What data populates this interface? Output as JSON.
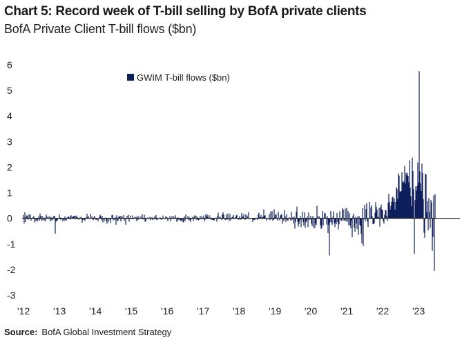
{
  "header": {
    "title": "Chart 5: Record week of T-bill selling by BofA private clients",
    "subtitle": "BofA Private Client T-bill flows ($bn)"
  },
  "footer": {
    "source_label": "Source:",
    "source_text": "BofA Global Investment Strategy"
  },
  "colors": {
    "series": "#0f1f5c",
    "axis": "#1a1a1a",
    "text": "#222222"
  },
  "chart_data": {
    "type": "bar",
    "title": "Chart 5: Record week of T-bill selling by BofA private clients",
    "subtitle": "BofA Private Client T-bill flows ($bn)",
    "xlabel": "",
    "ylabel": "",
    "ylim": [
      -3,
      6
    ],
    "yticks": [
      -3,
      -2,
      -1,
      0,
      1,
      2,
      3,
      4,
      5,
      6
    ],
    "xlim": [
      2012.0,
      2023.75
    ],
    "xticks": [
      {
        "value": 2012,
        "label": "'12"
      },
      {
        "value": 2013,
        "label": "'13"
      },
      {
        "value": 2014,
        "label": "'14"
      },
      {
        "value": 2015,
        "label": "'15"
      },
      {
        "value": 2016,
        "label": "'16"
      },
      {
        "value": 2017,
        "label": "'17"
      },
      {
        "value": 2018,
        "label": "'18"
      },
      {
        "value": 2019,
        "label": "'19"
      },
      {
        "value": 2020,
        "label": "'20"
      },
      {
        "value": 2021,
        "label": "'21"
      },
      {
        "value": 2022,
        "label": "'22"
      },
      {
        "value": 2023,
        "label": "'23"
      }
    ],
    "grid": false,
    "legend_position": "top-left",
    "frequency": "weekly",
    "series": [
      {
        "name": "GWIM T-bill flows ($bn)",
        "color": "#0f1f5c",
        "x_start": 2012.0,
        "x_step": 0.019231,
        "values": [
          0.13,
          -0.2,
          0.24,
          -0.14,
          0.08,
          0.12,
          0.07,
          -0.05,
          0.16,
          0.02,
          0.15,
          -0.09,
          0.02,
          -0.03,
          0.05,
          0.09,
          -0.16,
          -0.02,
          -0.11,
          -0.04,
          -0.12,
          -0.05,
          0.08,
          -0.09,
          0.19,
          0.09,
          -0.09,
          0.1,
          -0.07,
          0.03,
          -0.09,
          0.03,
          -0.12,
          0.15,
          0.06,
          0.01,
          0.07,
          -0.01,
          0.08,
          -0.12,
          0.05,
          -0.08,
          -0.06,
          0.04,
          0.1,
          0.1,
          -0.6,
          -0.13,
          -0.1,
          -0.09,
          -0.02,
          -0.01,
          0.16,
          0.04,
          -0.07,
          -0.03,
          -0.03,
          -0.11,
          -0.03,
          -0.1,
          0.08,
          -0.08,
          -0.09,
          0.03,
          0.04,
          0.09,
          0.04,
          -0.04,
          0.09,
          0.12,
          -0.02,
          0.06,
          0.08,
          0.09,
          0.1,
          -0.03,
          0.11,
          0.07,
          0.05,
          -0.03,
          -0.05,
          0.0,
          0.06,
          0.01,
          0.05,
          -0.17,
          -0.07,
          -0.01,
          -0.06,
          -0.1,
          0.03,
          0.02,
          0.18,
          0.04,
          0.09,
          -0.02,
          0.01,
          0.18,
          0.01,
          0.08,
          0.03,
          -0.08,
          0.04,
          0.1,
          -0.03,
          -0.06,
          -0.05,
          0.02,
          -0.12,
          -0.01,
          0.05,
          0.15,
          0.1,
          -0.08,
          0.09,
          -0.16,
          0.01,
          -0.11,
          0.0,
          0.04,
          -0.12,
          -0.21,
          0.01,
          -0.14,
          0.01,
          -0.05,
          -0.18,
          0.01,
          0.13,
          0.13,
          -0.08,
          -0.01,
          -0.06,
          0.05,
          -0.25,
          0.12,
          -0.09,
          -0.1,
          0.08,
          0.05,
          0.1,
          -0.12,
          0.09,
          0.06,
          -0.01,
          0.13,
          -0.1,
          -0.03,
          -0.25,
          0.0,
          0.1,
          0.0,
          0.14,
          -0.13,
          -0.03,
          0.11,
          -0.02,
          -0.03,
          0.11,
          -0.03,
          0.02,
          0.05,
          0.02,
          0.06,
          -0.12,
          0.08,
          -0.06,
          0.08,
          0.0,
          0.01,
          0.07,
          -0.01,
          0.16,
          -0.04,
          -0.04,
          0.14,
          -0.12,
          -0.13,
          0.02,
          0.01,
          0.04,
          -0.02,
          -0.01,
          0.06,
          -0.07,
          -0.02,
          0.05,
          -0.07,
          -0.01,
          -0.04,
          0.07,
          0.05,
          0.13,
          -0.07,
          -0.05,
          0.02,
          0.02,
          0.02,
          0.04,
          -0.04,
          -0.06,
          0.02,
          0.11,
          0.01,
          -0.01,
          0.02,
          0.08,
          0.06,
          0.03,
          -0.11,
          -0.03,
          -0.02,
          0.09,
          -0.11,
          -0.02,
          0.08,
          0.0,
          0.09,
          -0.02,
          0.04,
          0.12,
          0.02,
          -0.14,
          -0.1,
          0.04,
          -0.06,
          0.02,
          -0.09,
          -0.08,
          -0.11,
          -0.02,
          -0.16,
          -0.14,
          0.08,
          -0.11,
          0.15,
          0.02,
          -0.01,
          0.09,
          -0.07,
          0.05,
          -0.08,
          -0.14,
          -0.03,
          0.02,
          0.06,
          -0.1,
          0.06,
          0.12,
          0.02,
          0.1,
          -0.06,
          0.05,
          -0.08,
          -0.07,
          0.02,
          0.09,
          -0.03,
          0.08,
          -0.04,
          0.03,
          0.11,
          -0.11,
          -0.05,
          0.16,
          0.07,
          0.15,
          0.06,
          0.02,
          0.13,
          -0.02,
          0.04,
          -0.06,
          -0.04,
          -0.06,
          -0.07,
          -0.09,
          0.02,
          0.02,
          0.03,
          -0.13,
          0.1,
          0.22,
          0.0,
          0.05,
          0.06,
          0.02,
          -0.07,
          0.16,
          0.24,
          0.14,
          0.02,
          -0.06,
          -0.05,
          0.15,
          -0.06,
          0.19,
          0.03,
          -0.1,
          0.18,
          -0.08,
          0.0,
          0.05,
          0.06,
          0.13,
          -0.02,
          0.02,
          0.04,
          0.11,
          0.14,
          -0.01,
          -0.05,
          -0.05,
          0.09,
          -0.04,
          -0.05,
          0.21,
          0.08,
          0.05,
          0.17,
          -0.03,
          -0.06,
          0.16,
          0.04,
          0.11,
          0.02,
          0.24,
          0.02,
          0.01,
          -0.02,
          -0.02,
          0.01,
          -0.14,
          -0.06,
          -0.05,
          -0.07,
          0.01,
          0.03,
          -0.02,
          -0.06,
          0.16,
          0.22,
          0.04,
          0.05,
          0.13,
          -0.03,
          0.05,
          0.06,
          0.35,
          0.1,
          0.12,
          -0.01,
          -0.09,
          -0.01,
          -0.02,
          -0.02,
          0.17,
          -0.07,
          0.27,
          -0.03,
          0.28,
          -0.09,
          -0.06,
          0.36,
          0.05,
          0.15,
          0.16,
          0.0,
          -0.08,
          0.26,
          -0.02,
          -0.08,
          0.11,
          0.14,
          0.16,
          -0.21,
          -0.04,
          -0.12,
          0.32,
          0.08,
          -0.14,
          0.16,
          -0.06,
          -0.1,
          -0.01,
          0.04,
          -0.02,
          -0.09,
          0.26,
          -0.06,
          0.05,
          -0.2,
          0.07,
          -0.4,
          -0.14,
          0.26,
          0.46,
          -0.13,
          -0.32,
          -0.22,
          -0.09,
          0.09,
          -0.34,
          -0.04,
          0.26,
          -0.15,
          -0.28,
          0.23,
          -0.37,
          -0.15,
          -0.11,
          0.08,
          -0.34,
          0.23,
          -0.06,
          -0.04,
          0.1,
          -0.21,
          -0.3,
          0.09,
          -0.38,
          0.02,
          -0.38,
          -0.2,
          -0.26,
          0.49,
          0.06,
          0.01,
          0.09,
          0.03,
          -0.27,
          -0.41,
          -0.37,
          0.29,
          -0.27,
          0.03,
          0.22,
          0.19,
          0.03,
          -0.24,
          0.09,
          -0.58,
          -0.26,
          -1.45,
          -0.15,
          0.29,
          -0.16,
          -0.26,
          0.06,
          0.27,
          -0.2,
          -0.34,
          -0.15,
          -0.23,
          0.21,
          -0.14,
          -0.43,
          -0.23,
          0.28,
          -0.05,
          -0.08,
          -0.11,
          0.4,
          0.34,
          -0.09,
          -0.08,
          0.38,
          -0.12,
          0.41,
          -0.14,
          0.29,
          -0.27,
          0.2,
          -0.28,
          -0.39,
          -0.09,
          -0.74,
          0.09,
          0.19,
          -0.36,
          -0.52,
          0.06,
          -0.2,
          -0.41,
          0.07,
          -0.64,
          0.09,
          -0.25,
          -0.31,
          -0.6,
          -0.98,
          0.4,
          -1.08,
          -0.03,
          0.53,
          -0.11,
          0.36,
          0.59,
          -0.13,
          -0.33,
          -0.01,
          0.64,
          -0.02,
          0.43,
          0.51,
          0.08,
          -0.22,
          -0.23,
          -0.19,
          0.22,
          0.63,
          0.45,
          0.33,
          0.05,
          0.05,
          0.41,
          -0.32,
          0.44,
          0.54,
          0.35,
          0.32,
          -0.12,
          -0.21,
          0.14,
          0.33,
          0.31,
          0.09,
          -0.11,
          0.6,
          0.96,
          0.65,
          0.34,
          0.49,
          0.64,
          0.81,
          0.85,
          0.64,
          0.78,
          0.34,
          0.64,
          1.22,
          1.15,
          0.77,
          1.76,
          1.67,
          1.06,
          1.03,
          1.07,
          1.81,
          1.43,
          1.39,
          1.46,
          2.05,
          1.36,
          1.78,
          1.68,
          1.78,
          1.66,
          1.41,
          2.26,
          1.2,
          0.86,
          0.48,
          2.37,
          1.85,
          1.14,
          -1.39,
          0.72,
          1.25,
          1.08,
          1.26,
          2.18,
          1.4,
          5.75,
          1.84,
          1.37,
          1.07,
          2.14,
          1.77,
          0.75,
          -0.56,
          -0.76,
          1.74,
          1.72,
          0.25,
          0.68,
          -0.47,
          0.79,
          0.26,
          -0.38,
          0.72,
          0.63,
          -1.27,
          -0.73,
          0.89,
          -2.05,
          0.95
        ]
      }
    ]
  }
}
